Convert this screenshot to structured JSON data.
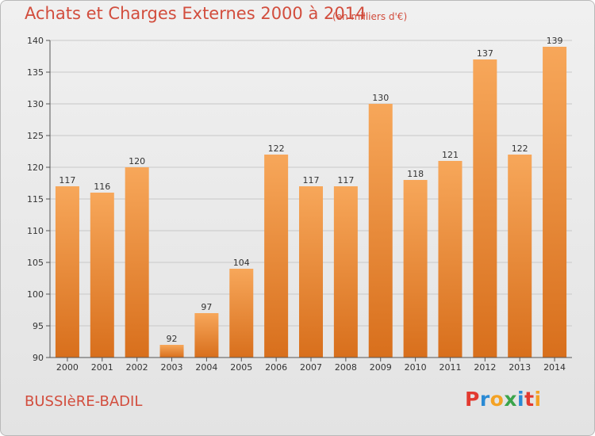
{
  "title": "Achats et Charges Externes 2000 à 2014",
  "subtitle": "(en milliers d'€)",
  "commune": "BUSSIèRE-BADIL",
  "logo": {
    "letters": [
      "P",
      "r",
      "o",
      "x",
      "i",
      "t",
      "i"
    ],
    "colors": [
      "#e23a30",
      "#2a8ad4",
      "#f4a224",
      "#3aa44a",
      "#2a8ad4",
      "#e23a30",
      "#f4a224"
    ]
  },
  "colors": {
    "title": "#d24d3d",
    "bar_light": "#f7a75a",
    "bar_dark": "#d86f1c",
    "axis": "#555555",
    "grid": "#c8c8c8"
  },
  "chart_data": {
    "type": "bar",
    "categories": [
      "2000",
      "2001",
      "2002",
      "2003",
      "2004",
      "2005",
      "2006",
      "2007",
      "2008",
      "2009",
      "2010",
      "2011",
      "2012",
      "2013",
      "2014"
    ],
    "values": [
      117,
      116,
      120,
      92,
      97,
      104,
      122,
      117,
      117,
      130,
      118,
      121,
      137,
      122,
      139
    ],
    "ylim": [
      90,
      140
    ],
    "yticks": [
      90,
      95,
      100,
      105,
      110,
      115,
      120,
      125,
      130,
      135,
      140
    ],
    "grid": true,
    "xlabel": "",
    "ylabel": ""
  }
}
